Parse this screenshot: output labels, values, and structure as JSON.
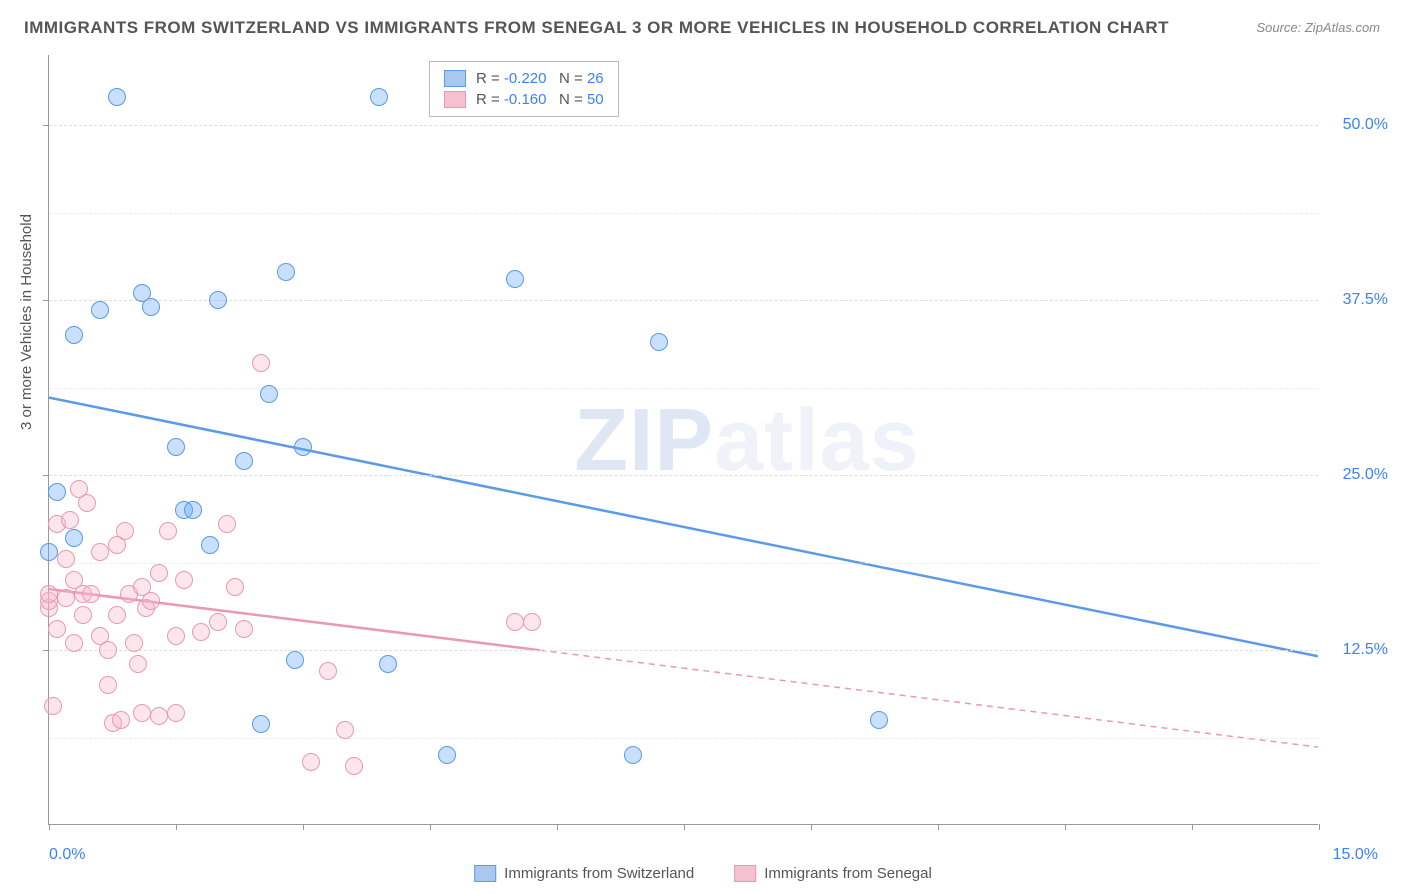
{
  "title": "IMMIGRANTS FROM SWITZERLAND VS IMMIGRANTS FROM SENEGAL 3 OR MORE VEHICLES IN HOUSEHOLD CORRELATION CHART",
  "source": "Source: ZipAtlas.com",
  "y_axis_title": "3 or more Vehicles in Household",
  "watermark_left": "ZIP",
  "watermark_right": "atlas",
  "chart": {
    "type": "scatter-with-regression",
    "background_color": "#ffffff",
    "grid_color": "#dddddd",
    "axis_color": "#999999",
    "tick_label_color": "#3b82f6",
    "title_color": "#555555",
    "xlim": [
      0.0,
      15.0
    ],
    "ylim": [
      0.0,
      55.0
    ],
    "x_ticks": [
      0.0,
      15.0
    ],
    "x_tick_labels": [
      "0.0%",
      "15.0%"
    ],
    "y_ticks": [
      12.5,
      25.0,
      37.5,
      50.0
    ],
    "y_tick_labels": [
      "12.5%",
      "25.0%",
      "37.5%",
      "50.0%"
    ],
    "x_minor_ticks": [
      1.5,
      3.0,
      4.5,
      6.0,
      7.5,
      9.0,
      10.5,
      12.0,
      13.5
    ],
    "y_minor_grid": [
      6.25,
      18.75,
      31.25,
      43.75
    ],
    "marker_radius": 9,
    "marker_border_width": 1.5,
    "trend_line_width": 2.5,
    "series": [
      {
        "name": "Immigrants from Switzerland",
        "fill_color": "rgba(96,165,250,0.35)",
        "stroke_color": "#5a9ae6",
        "swatch_fill": "#a8c8f0",
        "swatch_border": "#5a9ae6",
        "R": "-0.220",
        "N": "26",
        "trend": {
          "x1": 0.0,
          "y1": 30.5,
          "x2": 15.0,
          "y2": 12.0,
          "solid_until_x": 15.0
        },
        "points": [
          [
            0.0,
            19.5
          ],
          [
            0.1,
            23.8
          ],
          [
            0.3,
            20.5
          ],
          [
            0.3,
            35.0
          ],
          [
            0.6,
            36.8
          ],
          [
            0.8,
            52.0
          ],
          [
            1.1,
            38.0
          ],
          [
            1.2,
            37.0
          ],
          [
            1.5,
            27.0
          ],
          [
            1.6,
            22.5
          ],
          [
            1.7,
            22.5
          ],
          [
            1.9,
            20.0
          ],
          [
            2.0,
            37.5
          ],
          [
            2.3,
            26.0
          ],
          [
            2.5,
            7.2
          ],
          [
            2.6,
            30.8
          ],
          [
            2.8,
            39.5
          ],
          [
            2.9,
            11.8
          ],
          [
            3.0,
            27.0
          ],
          [
            3.9,
            52.0
          ],
          [
            4.0,
            11.5
          ],
          [
            4.7,
            5.0
          ],
          [
            5.5,
            39.0
          ],
          [
            6.9,
            5.0
          ],
          [
            7.2,
            34.5
          ],
          [
            9.8,
            7.5
          ]
        ]
      },
      {
        "name": "Immigrants from Senegal",
        "fill_color": "rgba(248,180,200,0.35)",
        "stroke_color": "#e89ab0",
        "swatch_fill": "#f5c0cf",
        "swatch_border": "#e89ab0",
        "R": "-0.160",
        "N": "50",
        "trend": {
          "x1": 0.0,
          "y1": 16.8,
          "x2": 15.0,
          "y2": 5.5,
          "solid_until_x": 5.8
        },
        "points": [
          [
            0.0,
            15.5
          ],
          [
            0.0,
            16.0
          ],
          [
            0.0,
            16.5
          ],
          [
            0.05,
            8.5
          ],
          [
            0.1,
            14.0
          ],
          [
            0.1,
            21.5
          ],
          [
            0.2,
            16.2
          ],
          [
            0.2,
            19.0
          ],
          [
            0.25,
            21.8
          ],
          [
            0.3,
            17.5
          ],
          [
            0.3,
            13.0
          ],
          [
            0.35,
            24.0
          ],
          [
            0.4,
            15.0
          ],
          [
            0.4,
            16.5
          ],
          [
            0.45,
            23.0
          ],
          [
            0.5,
            16.5
          ],
          [
            0.6,
            13.5
          ],
          [
            0.6,
            19.5
          ],
          [
            0.7,
            10.0
          ],
          [
            0.7,
            12.5
          ],
          [
            0.75,
            7.3
          ],
          [
            0.8,
            20.0
          ],
          [
            0.8,
            15.0
          ],
          [
            0.85,
            7.5
          ],
          [
            0.9,
            21.0
          ],
          [
            0.95,
            16.5
          ],
          [
            1.0,
            13.0
          ],
          [
            1.05,
            11.5
          ],
          [
            1.1,
            17.0
          ],
          [
            1.1,
            8.0
          ],
          [
            1.15,
            15.5
          ],
          [
            1.2,
            16.0
          ],
          [
            1.3,
            18.0
          ],
          [
            1.3,
            7.8
          ],
          [
            1.4,
            21.0
          ],
          [
            1.5,
            8.0
          ],
          [
            1.5,
            13.5
          ],
          [
            1.6,
            17.5
          ],
          [
            1.8,
            13.8
          ],
          [
            2.0,
            14.5
          ],
          [
            2.1,
            21.5
          ],
          [
            2.2,
            17.0
          ],
          [
            2.3,
            14.0
          ],
          [
            2.5,
            33.0
          ],
          [
            3.1,
            4.5
          ],
          [
            3.3,
            11.0
          ],
          [
            3.5,
            6.8
          ],
          [
            3.6,
            4.2
          ],
          [
            5.5,
            14.5
          ],
          [
            5.7,
            14.5
          ]
        ]
      }
    ],
    "stats_label_R": "R =",
    "stats_label_N": "N ="
  }
}
